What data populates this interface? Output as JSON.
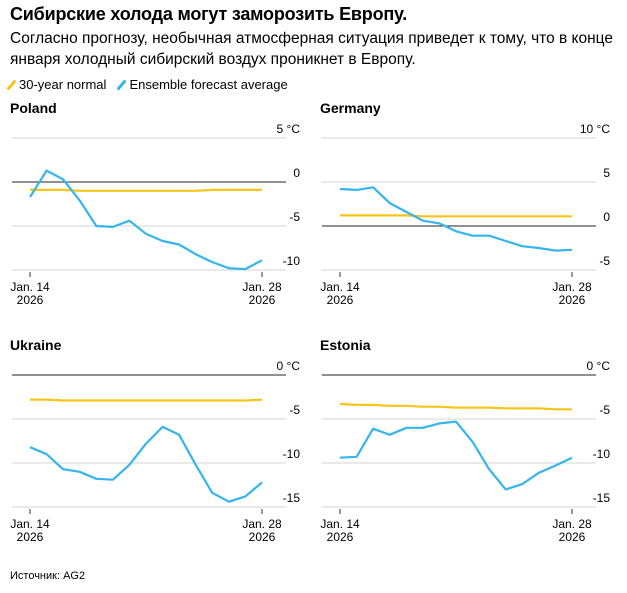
{
  "header": {
    "title": "Сибирские холода могут заморозить Европу.",
    "subtitle": "Согласно прогнозу, необычная атмосферная ситуация приведет к тому, что в конце января холодный сибирский воздух проникнет в Европу."
  },
  "legend": [
    {
      "label": "30-year normal",
      "color": "#f5c518"
    },
    {
      "label": "Ensemble forecast average",
      "color": "#36b4ee"
    }
  ],
  "source": "Источник: AG2",
  "chart_data": [
    {
      "type": "line",
      "title": "Poland",
      "unit": "°C",
      "x_tick_labels": [
        [
          "Jan. 14",
          "2026"
        ],
        [
          "Jan. 28",
          "2026"
        ]
      ],
      "x": [
        "Jan. 14",
        "Jan. 15",
        "Jan. 16",
        "Jan. 17",
        "Jan. 18",
        "Jan. 19",
        "Jan. 20",
        "Jan. 21",
        "Jan. 22",
        "Jan. 23",
        "Jan. 24",
        "Jan. 25",
        "Jan. 26",
        "Jan. 27",
        "Jan. 28"
      ],
      "ylim": [
        -10,
        5
      ],
      "yticks": [
        5,
        0,
        -5,
        -10
      ],
      "ytick_labels": [
        "5 °C",
        "0",
        "-5",
        "-10"
      ],
      "grid": true,
      "series": [
        {
          "name": "30-year normal",
          "values": [
            -0.9,
            -0.9,
            -0.9,
            -1.0,
            -1.0,
            -1.0,
            -1.0,
            -1.0,
            -1.0,
            -1.0,
            -1.0,
            -0.9,
            -0.9,
            -0.9,
            -0.9
          ]
        },
        {
          "name": "Ensemble forecast average",
          "values": [
            -1.7,
            1.3,
            0.3,
            -2.1,
            -5.0,
            -5.1,
            -4.4,
            -5.9,
            -6.7,
            -7.1,
            -8.2,
            -9.1,
            -9.8,
            -9.9,
            -8.9
          ]
        }
      ]
    },
    {
      "type": "line",
      "title": "Germany",
      "unit": "°C",
      "x_tick_labels": [
        [
          "Jan. 14",
          "2026"
        ],
        [
          "Jan. 28",
          "2026"
        ]
      ],
      "x": [
        "Jan. 14",
        "Jan. 15",
        "Jan. 16",
        "Jan. 17",
        "Jan. 18",
        "Jan. 19",
        "Jan. 20",
        "Jan. 21",
        "Jan. 22",
        "Jan. 23",
        "Jan. 24",
        "Jan. 25",
        "Jan. 26",
        "Jan. 27",
        "Jan. 28"
      ],
      "ylim": [
        -5,
        10
      ],
      "yticks": [
        10,
        5,
        0,
        -5
      ],
      "ytick_labels": [
        "10 °C",
        "5",
        "0",
        "-5"
      ],
      "grid": true,
      "series": [
        {
          "name": "30-year normal",
          "values": [
            1.2,
            1.2,
            1.2,
            1.2,
            1.2,
            1.1,
            1.1,
            1.1,
            1.1,
            1.1,
            1.1,
            1.1,
            1.1,
            1.1,
            1.1
          ]
        },
        {
          "name": "Ensemble forecast average",
          "values": [
            4.2,
            4.1,
            4.4,
            2.6,
            1.6,
            0.6,
            0.3,
            -0.6,
            -1.1,
            -1.1,
            -1.7,
            -2.3,
            -2.5,
            -2.8,
            -2.7
          ]
        }
      ]
    },
    {
      "type": "line",
      "title": "Ukraine",
      "unit": "°C",
      "x_tick_labels": [
        [
          "Jan. 14",
          "2026"
        ],
        [
          "Jan. 28",
          "2026"
        ]
      ],
      "x": [
        "Jan. 14",
        "Jan. 15",
        "Jan. 16",
        "Jan. 17",
        "Jan. 18",
        "Jan. 19",
        "Jan. 20",
        "Jan. 21",
        "Jan. 22",
        "Jan. 23",
        "Jan. 24",
        "Jan. 25",
        "Jan. 26",
        "Jan. 27",
        "Jan. 28"
      ],
      "ylim": [
        -15,
        0
      ],
      "yticks": [
        0,
        -5,
        -10,
        -15
      ],
      "ytick_labels": [
        "0 °C",
        "-5",
        "-10",
        "-15"
      ],
      "grid": true,
      "series": [
        {
          "name": "30-year normal",
          "values": [
            -2.8,
            -2.8,
            -2.9,
            -2.9,
            -2.9,
            -2.9,
            -2.9,
            -2.9,
            -2.9,
            -2.9,
            -2.9,
            -2.9,
            -2.9,
            -2.9,
            -2.8
          ]
        },
        {
          "name": "Ensemble forecast average",
          "values": [
            -8.2,
            -9.0,
            -10.7,
            -11.0,
            -11.8,
            -11.9,
            -10.2,
            -7.8,
            -5.9,
            -6.8,
            -10.2,
            -13.4,
            -14.4,
            -13.8,
            -12.2
          ]
        }
      ]
    },
    {
      "type": "line",
      "title": "Estonia",
      "unit": "°C",
      "x_tick_labels": [
        [
          "Jan. 14",
          "2026"
        ],
        [
          "Jan. 28",
          "2026"
        ]
      ],
      "x": [
        "Jan. 14",
        "Jan. 15",
        "Jan. 16",
        "Jan. 17",
        "Jan. 18",
        "Jan. 19",
        "Jan. 20",
        "Jan. 21",
        "Jan. 22",
        "Jan. 23",
        "Jan. 24",
        "Jan. 25",
        "Jan. 26",
        "Jan. 27",
        "Jan. 28"
      ],
      "ylim": [
        -15,
        0
      ],
      "yticks": [
        0,
        -5,
        -10,
        -15
      ],
      "ytick_labels": [
        "0 °C",
        "-5",
        "-10",
        "-15"
      ],
      "grid": true,
      "series": [
        {
          "name": "30-year normal",
          "values": [
            -3.3,
            -3.4,
            -3.4,
            -3.5,
            -3.5,
            -3.6,
            -3.6,
            -3.7,
            -3.7,
            -3.7,
            -3.8,
            -3.8,
            -3.8,
            -3.9,
            -3.9
          ]
        },
        {
          "name": "Ensemble forecast average",
          "values": [
            -9.4,
            -9.3,
            -6.1,
            -6.8,
            -6.0,
            -6.0,
            -5.5,
            -5.3,
            -7.6,
            -10.7,
            -13.0,
            -12.4,
            -11.1,
            -10.3,
            -9.4
          ]
        }
      ]
    }
  ]
}
